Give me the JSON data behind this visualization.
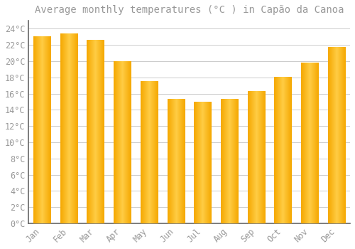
{
  "title": "Average monthly temperatures (°C ) in Capão da Canoa",
  "months": [
    "Jan",
    "Feb",
    "Mar",
    "Apr",
    "May",
    "Jun",
    "Jul",
    "Aug",
    "Sep",
    "Oct",
    "Nov",
    "Dec"
  ],
  "values": [
    23.0,
    23.4,
    22.6,
    20.0,
    17.5,
    15.3,
    15.0,
    15.3,
    16.3,
    18.0,
    19.8,
    21.7
  ],
  "bar_color_center": "#FFCC44",
  "bar_color_edge": "#F5A800",
  "background_color": "#FFFFFF",
  "grid_color": "#CCCCCC",
  "text_color": "#999999",
  "axis_color": "#666666",
  "ylim": [
    0,
    25
  ],
  "ytick_step": 2,
  "title_fontsize": 10,
  "tick_fontsize": 8.5,
  "figsize": [
    5.0,
    3.5
  ],
  "dpi": 100
}
